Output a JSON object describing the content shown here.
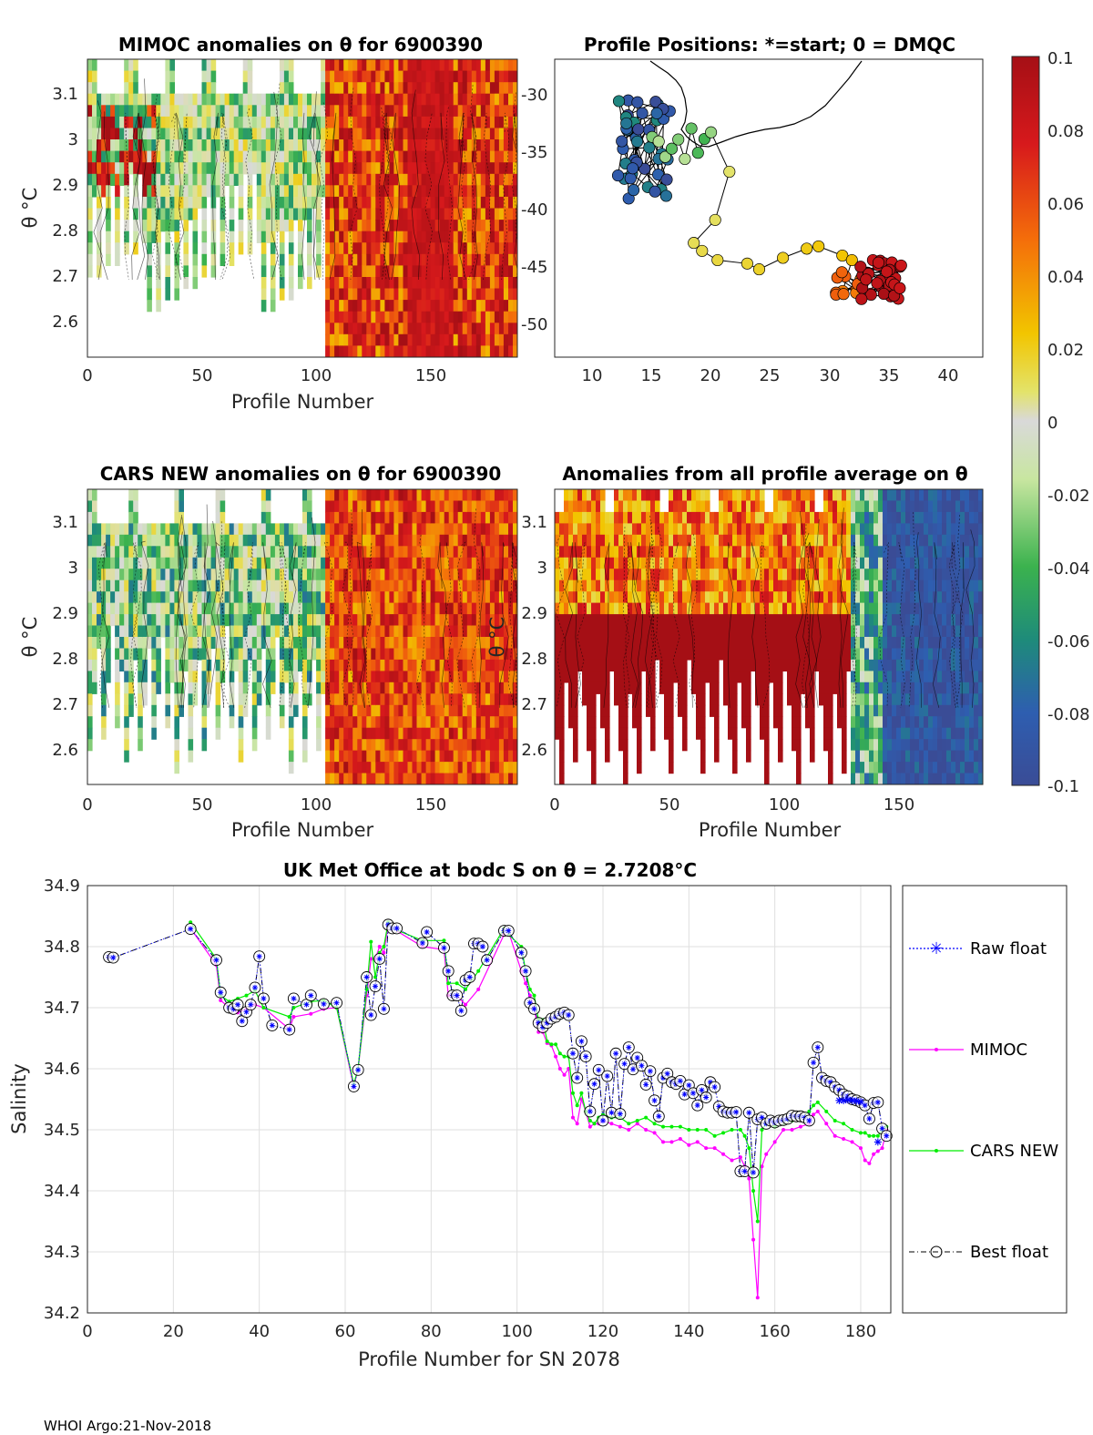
{
  "colors": {
    "raw": "#0000ff",
    "mimoc": "#ff00ff",
    "cars": "#00ee00",
    "best": "#000000",
    "grid": "#dddddd",
    "axis": "#262626"
  },
  "panels": {
    "mimoc": {
      "title": "MIMOC anomalies on θ  for 6900390",
      "xlabel": "Profile Number",
      "ylabel": "θ °C",
      "xticks": [
        "0",
        "50",
        "100",
        "150"
      ],
      "yticks": [
        "3.1",
        "3",
        "2.9",
        "2.8",
        "2.7",
        "2.6"
      ]
    },
    "positions": {
      "title": "Profile Positions: *=start; 0 = DMQC",
      "xticks": [
        "10",
        "15",
        "20",
        "25",
        "30",
        "35",
        "40"
      ],
      "yticks": [
        "-30",
        "-35",
        "-40",
        "-45",
        "-50"
      ]
    },
    "cars": {
      "title": "CARS NEW anomalies on θ for 6900390",
      "xlabel": "Profile Number",
      "ylabel": "θ °C",
      "xticks": [
        "0",
        "50",
        "100",
        "150"
      ],
      "yticks": [
        "3.1",
        "3",
        "2.9",
        "2.8",
        "2.7",
        "2.6"
      ]
    },
    "avg": {
      "title": "Anomalies from all profile average on θ",
      "xlabel": "Profile Number",
      "ylabel": "θ °C",
      "xticks": [
        "0",
        "50",
        "100",
        "150"
      ],
      "yticks": [
        "3.1",
        "3",
        "2.9",
        "2.8",
        "2.7",
        "2.6"
      ]
    },
    "colorbar": {
      "ticks": [
        "0.1",
        "0.08",
        "0.06",
        "0.04",
        "0.02",
        "0",
        "-0.02",
        "-0.04",
        "-0.06",
        "-0.08",
        "-0.1"
      ]
    }
  },
  "chart_data": {
    "type": "line",
    "title": "UK Met Office at bodc S on θ = 2.7208°C",
    "xlabel": "Profile Number for SN 2078",
    "ylabel": "Salinity",
    "xlim": [
      0,
      187
    ],
    "ylim": [
      34.2,
      34.9
    ],
    "xticks": [
      "0",
      "20",
      "40",
      "60",
      "80",
      "100",
      "120",
      "140",
      "160",
      "180"
    ],
    "yticks": [
      "34.9",
      "34.8",
      "34.7",
      "34.6",
      "34.5",
      "34.4",
      "34.3",
      "34.2"
    ],
    "legend": [
      "Raw float",
      "MIMOC",
      "CARS NEW",
      "Best float"
    ],
    "legend_position": "right-outside",
    "series": [
      {
        "name": "Best float",
        "x": [
          5,
          6,
          24,
          30,
          31,
          33,
          34,
          35,
          36,
          37,
          38,
          39,
          40,
          41,
          43,
          47,
          48,
          51,
          52,
          55,
          58,
          62,
          63,
          65,
          66,
          67,
          68,
          69,
          70,
          71,
          72,
          78,
          79,
          83,
          84,
          85,
          86,
          87,
          88,
          89,
          90,
          91,
          92,
          93,
          97,
          98,
          101,
          102,
          103,
          104,
          105,
          106,
          107,
          108,
          109,
          110,
          111,
          112,
          113,
          114,
          115,
          116,
          117,
          118,
          119,
          120,
          121,
          122,
          123,
          124,
          125,
          126,
          127,
          128,
          129,
          130,
          131,
          132,
          133,
          134,
          135,
          136,
          137,
          138,
          139,
          140,
          141,
          142,
          143,
          144,
          145,
          146,
          147,
          148,
          149,
          150,
          151,
          152,
          153,
          154,
          155,
          156,
          157,
          158,
          159,
          160,
          161,
          162,
          163,
          164,
          165,
          166,
          167,
          168,
          169,
          170,
          171,
          172,
          173,
          174,
          175,
          176,
          177,
          178,
          179,
          180,
          181,
          182,
          183,
          184,
          185,
          186
        ],
        "y": [
          34.783,
          34.782,
          34.829,
          34.778,
          34.725,
          34.7,
          34.698,
          34.705,
          34.678,
          34.693,
          34.705,
          34.733,
          34.784,
          34.715,
          34.671,
          34.664,
          34.715,
          34.705,
          34.72,
          34.706,
          34.708,
          34.571,
          34.598,
          34.75,
          34.688,
          34.735,
          34.78,
          34.698,
          34.836,
          34.83,
          34.83,
          34.806,
          34.824,
          34.798,
          34.76,
          34.72,
          34.72,
          34.695,
          34.745,
          34.75,
          34.805,
          34.805,
          34.8,
          34.778,
          34.826,
          34.826,
          34.79,
          34.76,
          34.708,
          34.698,
          34.675,
          34.668,
          34.675,
          34.682,
          34.685,
          34.69,
          34.692,
          34.688,
          34.625,
          34.585,
          34.645,
          34.62,
          34.53,
          34.575,
          34.598,
          34.515,
          34.588,
          34.528,
          34.625,
          34.526,
          34.608,
          34.635,
          34.599,
          34.618,
          34.605,
          34.574,
          34.596,
          34.548,
          34.522,
          34.585,
          34.592,
          34.578,
          34.575,
          34.58,
          34.558,
          34.573,
          34.56,
          34.54,
          34.565,
          34.553,
          34.578,
          34.57,
          34.538,
          34.53,
          34.528,
          34.528,
          34.529,
          34.432,
          34.432,
          34.528,
          34.43,
          34.517,
          34.52,
          34.51,
          34.515,
          34.512,
          34.515,
          34.516,
          34.518,
          34.523,
          34.522,
          34.522,
          34.52,
          34.515,
          34.61,
          34.635,
          34.585,
          34.58,
          34.578,
          34.57,
          34.565,
          34.558,
          34.555,
          34.55,
          34.548,
          34.545,
          34.54,
          34.518,
          34.544,
          34.545,
          34.502,
          34.49
        ]
      },
      {
        "name": "MIMOC",
        "x": [
          24,
          30,
          31,
          33,
          35,
          37,
          39,
          41,
          47,
          48,
          52,
          55,
          58,
          62,
          63,
          65,
          66,
          67,
          68,
          69,
          70,
          71,
          78,
          83,
          84,
          86,
          88,
          91,
          97,
          98,
          101,
          102,
          103,
          104,
          105,
          106,
          107,
          108,
          109,
          110,
          111,
          112,
          113,
          114,
          115,
          116,
          117,
          118,
          119,
          120,
          122,
          124,
          126,
          128,
          130,
          132,
          134,
          136,
          138,
          140,
          142,
          144,
          146,
          148,
          150,
          152,
          153,
          154,
          155,
          156,
          157,
          158,
          160,
          162,
          164,
          166,
          168,
          169,
          170,
          172,
          174,
          176,
          178,
          180,
          181,
          182,
          183,
          184,
          185,
          186
        ],
        "y": [
          34.83,
          34.77,
          34.712,
          34.7,
          34.692,
          34.698,
          34.705,
          34.7,
          34.665,
          34.685,
          34.69,
          34.698,
          34.7,
          34.57,
          34.6,
          34.72,
          34.78,
          34.78,
          34.8,
          34.79,
          34.836,
          34.83,
          34.8,
          34.795,
          34.72,
          34.72,
          34.705,
          34.73,
          34.82,
          34.825,
          34.76,
          34.74,
          34.72,
          34.7,
          34.66,
          34.66,
          34.642,
          34.638,
          34.62,
          34.6,
          34.59,
          34.6,
          34.52,
          34.51,
          34.55,
          34.53,
          34.505,
          34.51,
          34.51,
          34.515,
          34.51,
          34.505,
          34.5,
          34.51,
          34.5,
          34.495,
          34.48,
          34.48,
          34.485,
          34.475,
          34.48,
          34.47,
          34.47,
          34.46,
          34.45,
          34.455,
          34.44,
          34.42,
          34.32,
          34.225,
          34.44,
          34.46,
          34.48,
          34.5,
          34.5,
          34.505,
          34.51,
          34.525,
          34.53,
          34.51,
          34.49,
          34.485,
          34.48,
          34.47,
          34.45,
          34.445,
          34.46,
          34.465,
          34.47,
          34.5
        ]
      },
      {
        "name": "CARS NEW",
        "x": [
          24,
          30,
          31,
          33,
          35,
          37,
          39,
          41,
          47,
          48,
          52,
          55,
          58,
          62,
          63,
          65,
          66,
          67,
          68,
          69,
          70,
          71,
          78,
          83,
          84,
          86,
          88,
          91,
          97,
          98,
          101,
          102,
          103,
          104,
          105,
          106,
          107,
          108,
          109,
          110,
          111,
          112,
          113,
          114,
          115,
          116,
          117,
          118,
          119,
          120,
          122,
          124,
          126,
          128,
          130,
          132,
          134,
          136,
          138,
          140,
          142,
          144,
          146,
          148,
          150,
          152,
          153,
          154,
          155,
          156,
          157,
          158,
          160,
          162,
          164,
          166,
          168,
          169,
          170,
          172,
          174,
          176,
          178,
          180,
          181,
          182,
          183,
          184,
          185,
          186
        ],
        "y": [
          34.84,
          34.78,
          34.72,
          34.71,
          34.715,
          34.72,
          34.728,
          34.7,
          34.685,
          34.7,
          34.71,
          34.712,
          34.7,
          34.575,
          34.6,
          34.73,
          34.808,
          34.75,
          34.79,
          34.8,
          34.84,
          34.83,
          34.81,
          34.81,
          34.74,
          34.74,
          34.73,
          34.76,
          34.83,
          34.82,
          34.8,
          34.76,
          34.73,
          34.72,
          34.68,
          34.68,
          34.645,
          34.64,
          34.64,
          34.625,
          34.62,
          34.62,
          34.56,
          34.54,
          34.56,
          34.53,
          34.515,
          34.51,
          34.52,
          34.525,
          34.52,
          34.52,
          34.51,
          34.515,
          34.52,
          34.51,
          34.505,
          34.505,
          34.505,
          34.5,
          34.5,
          34.5,
          34.49,
          34.495,
          34.5,
          34.5,
          34.49,
          34.47,
          34.4,
          34.35,
          34.5,
          34.51,
          34.505,
          34.51,
          34.515,
          34.52,
          34.53,
          34.54,
          34.545,
          34.53,
          34.515,
          34.51,
          34.5,
          34.495,
          34.495,
          34.49,
          34.49,
          34.49,
          34.5,
          34.505
        ]
      }
    ],
    "raw_star_points": {
      "x": [
        175,
        176,
        177,
        178,
        179,
        180,
        184
      ],
      "y": [
        34.548,
        34.548,
        34.549,
        34.548,
        34.547,
        34.546,
        34.48
      ]
    }
  },
  "footer": "WHOI Argo:21-Nov-2018"
}
